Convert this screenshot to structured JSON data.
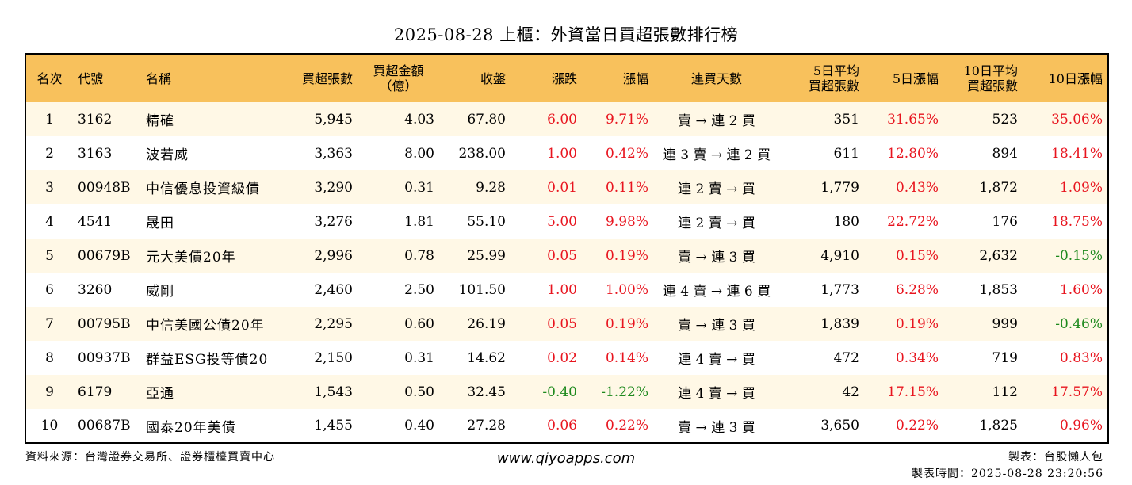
{
  "title": "2025-08-28 上櫃：外資當日買超張數排行榜",
  "headers": {
    "rank": "名次",
    "code": "代號",
    "name": "名稱",
    "net_buy_lots": "買超張數",
    "net_buy_amount_1": "買超金額",
    "net_buy_amount_2": "（億）",
    "close": "收盤",
    "change": "漲跌",
    "change_pct": "漲幅",
    "consecutive_days": "連買天數",
    "avg5_1": "5日平均",
    "avg5_2": "買超張數",
    "chg5": "5日漲幅",
    "avg10_1": "10日平均",
    "avg10_2": "買超張數",
    "chg10": "10日漲幅"
  },
  "rows": [
    {
      "rank": "1",
      "code": "3162",
      "name": "精確",
      "lots": "5,945",
      "amount": "4.03",
      "close": "67.80",
      "change": "6.00",
      "pct": "9.71%",
      "days": "賣 → 連 2 買",
      "avg5": "351",
      "chg5": "31.65%",
      "avg10": "523",
      "chg10": "35.06%"
    },
    {
      "rank": "2",
      "code": "3163",
      "name": "波若威",
      "lots": "3,363",
      "amount": "8.00",
      "close": "238.00",
      "change": "1.00",
      "pct": "0.42%",
      "days": "連 3 賣 → 連 2 買",
      "avg5": "611",
      "chg5": "12.80%",
      "avg10": "894",
      "chg10": "18.41%"
    },
    {
      "rank": "3",
      "code": "00948B",
      "name": "中信優息投資級債",
      "lots": "3,290",
      "amount": "0.31",
      "close": "9.28",
      "change": "0.01",
      "pct": "0.11%",
      "days": "連 2 賣 → 買",
      "avg5": "1,779",
      "chg5": "0.43%",
      "avg10": "1,872",
      "chg10": "1.09%"
    },
    {
      "rank": "4",
      "code": "4541",
      "name": "晟田",
      "lots": "3,276",
      "amount": "1.81",
      "close": "55.10",
      "change": "5.00",
      "pct": "9.98%",
      "days": "連 2 賣 → 買",
      "avg5": "180",
      "chg5": "22.72%",
      "avg10": "176",
      "chg10": "18.75%"
    },
    {
      "rank": "5",
      "code": "00679B",
      "name": "元大美債20年",
      "lots": "2,996",
      "amount": "0.78",
      "close": "25.99",
      "change": "0.05",
      "pct": "0.19%",
      "days": "賣 → 連 3 買",
      "avg5": "4,910",
      "chg5": "0.15%",
      "avg10": "2,632",
      "chg10": "-0.15%"
    },
    {
      "rank": "6",
      "code": "3260",
      "name": "威剛",
      "lots": "2,460",
      "amount": "2.50",
      "close": "101.50",
      "change": "1.00",
      "pct": "1.00%",
      "days": "連 4 賣 → 連 6 買",
      "avg5": "1,773",
      "chg5": "6.28%",
      "avg10": "1,853",
      "chg10": "1.60%"
    },
    {
      "rank": "7",
      "code": "00795B",
      "name": "中信美國公債20年",
      "lots": "2,295",
      "amount": "0.60",
      "close": "26.19",
      "change": "0.05",
      "pct": "0.19%",
      "days": "賣 → 連 3 買",
      "avg5": "1,839",
      "chg5": "0.19%",
      "avg10": "999",
      "chg10": "-0.46%"
    },
    {
      "rank": "8",
      "code": "00937B",
      "name": "群益ESG投等債20",
      "lots": "2,150",
      "amount": "0.31",
      "close": "14.62",
      "change": "0.02",
      "pct": "0.14%",
      "days": "連 4 賣 → 買",
      "avg5": "472",
      "chg5": "0.34%",
      "avg10": "719",
      "chg10": "0.83%"
    },
    {
      "rank": "9",
      "code": "6179",
      "name": "亞通",
      "lots": "1,543",
      "amount": "0.50",
      "close": "32.45",
      "change": "-0.40",
      "pct": "-1.22%",
      "days": "連 4 賣 → 買",
      "avg5": "42",
      "chg5": "17.15%",
      "avg10": "112",
      "chg10": "17.57%"
    },
    {
      "rank": "10",
      "code": "00687B",
      "name": "國泰20年美債",
      "lots": "1,455",
      "amount": "0.40",
      "close": "27.28",
      "change": "0.06",
      "pct": "0.22%",
      "days": "賣 → 連 3 買",
      "avg5": "3,650",
      "chg5": "0.22%",
      "avg10": "1,825",
      "chg10": "0.96%"
    }
  ],
  "footer": {
    "source": "資料來源：台灣證券交易所、證券櫃檯買賣中心",
    "website": "www.qiyoapps.com",
    "maker": "製表：台股懶人包",
    "made_time": "製表時間：2025-08-28 23:20:56"
  },
  "colors": {
    "header_bg": "#f8c15c",
    "row_alt_bg": "#fff8e6",
    "positive": "#e8141e",
    "negative": "#1e8a1e"
  }
}
